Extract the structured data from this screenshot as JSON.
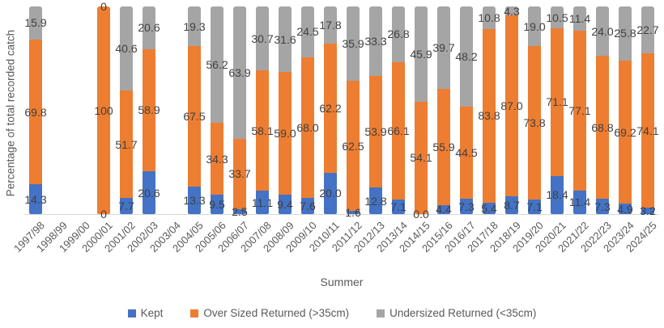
{
  "chart_data": {
    "type": "bar",
    "variant": "stacked-100-percent",
    "title": "",
    "xlabel": "Summer",
    "ylabel": "Percentage of total recorded catch",
    "ylim": [
      0,
      100
    ],
    "gridlines": false,
    "y_axis_ticks_visible": false,
    "legend_position": "bottom",
    "styles": {
      "background": "#FFFFFF",
      "data_label_color": "#404040",
      "axis_text_color": "#595959",
      "axis_line_color": "#D9D9D9"
    },
    "categories": [
      "1997/98",
      "1998/99",
      "1999/00",
      "2000/01",
      "2001/02",
      "2002/03",
      "2003/04",
      "2004/05",
      "2005/06",
      "2006/07",
      "2007/08",
      "2008/09",
      "2009/10",
      "2010/11",
      "2011/12",
      "2012/13",
      "2013/14",
      "2014/15",
      "2015/16",
      "2016/17",
      "2017/18",
      "2018/19",
      "2019/20",
      "2020/21",
      "2021/22",
      "2022/23",
      "2023/24",
      "2024/25"
    ],
    "series": [
      {
        "key": "kept",
        "name": "Kept",
        "color": "#4472C4",
        "values": [
          14.3,
          null,
          null,
          0,
          7.7,
          20.6,
          null,
          13.3,
          9.5,
          2.5,
          11.1,
          9.4,
          7.6,
          20.0,
          1.6,
          12.8,
          7.1,
          0.0,
          4.4,
          7.3,
          5.4,
          8.7,
          7.1,
          18.4,
          11.4,
          7.3,
          4.9,
          3.2
        ],
        "labels": [
          "14.3",
          null,
          null,
          "0",
          "7.7",
          "20.6",
          null,
          "13.3",
          "9.5",
          "2.5",
          "11.1",
          "9.4",
          "7.6",
          "20.0",
          "1.6",
          "12.8",
          "7.1",
          "0.0",
          "4.4",
          "7.3",
          "5.4",
          "8.7",
          "7.1",
          "18.4",
          "11.4",
          "7.3",
          "4.9",
          "3.2"
        ]
      },
      {
        "key": "oversized",
        "name": "Over Sized Returned (>35cm)",
        "color": "#ED7D31",
        "values": [
          69.8,
          null,
          null,
          100,
          51.7,
          58.9,
          null,
          67.5,
          34.3,
          33.7,
          58.1,
          59.0,
          68.0,
          62.2,
          62.5,
          53.9,
          66.1,
          54.1,
          55.9,
          44.5,
          83.8,
          87.0,
          73.8,
          71.1,
          77.1,
          68.8,
          69.2,
          74.1
        ],
        "labels": [
          "69.8",
          null,
          null,
          "100",
          "51.7",
          "58.9",
          null,
          "67.5",
          "34.3",
          "33.7",
          "58.1",
          "59.0",
          "68.0",
          "62.2",
          "62.5",
          "53.9",
          "66.1",
          "54.1",
          "55.9",
          "44.5",
          "83.8",
          "87.0",
          "73.8",
          "71.1",
          "77.1",
          "68.8",
          "69.2",
          "74.1"
        ]
      },
      {
        "key": "undersized",
        "name": "Undersized Returned (<35cm)",
        "color": "#A5A5A5",
        "values": [
          15.9,
          null,
          null,
          0,
          40.6,
          20.6,
          null,
          19.3,
          56.2,
          63.9,
          30.7,
          31.6,
          24.5,
          17.8,
          35.9,
          33.3,
          26.8,
          45.9,
          39.7,
          48.2,
          10.8,
          4.3,
          19.0,
          10.5,
          11.4,
          24.0,
          25.8,
          22.7
        ],
        "labels": [
          "15.9",
          null,
          null,
          "0",
          "40.6",
          "20.6",
          null,
          "19.3",
          "56.2",
          "63.9",
          "30.7",
          "31.6",
          "24.5",
          "17.8",
          "35.9",
          "33.3",
          "26.8",
          "45.9",
          "39.7",
          "48.2",
          "10.8",
          "4.3",
          "19.0",
          "10.5",
          "11.4",
          "24.0",
          "25.8",
          "22.7"
        ]
      }
    ]
  }
}
